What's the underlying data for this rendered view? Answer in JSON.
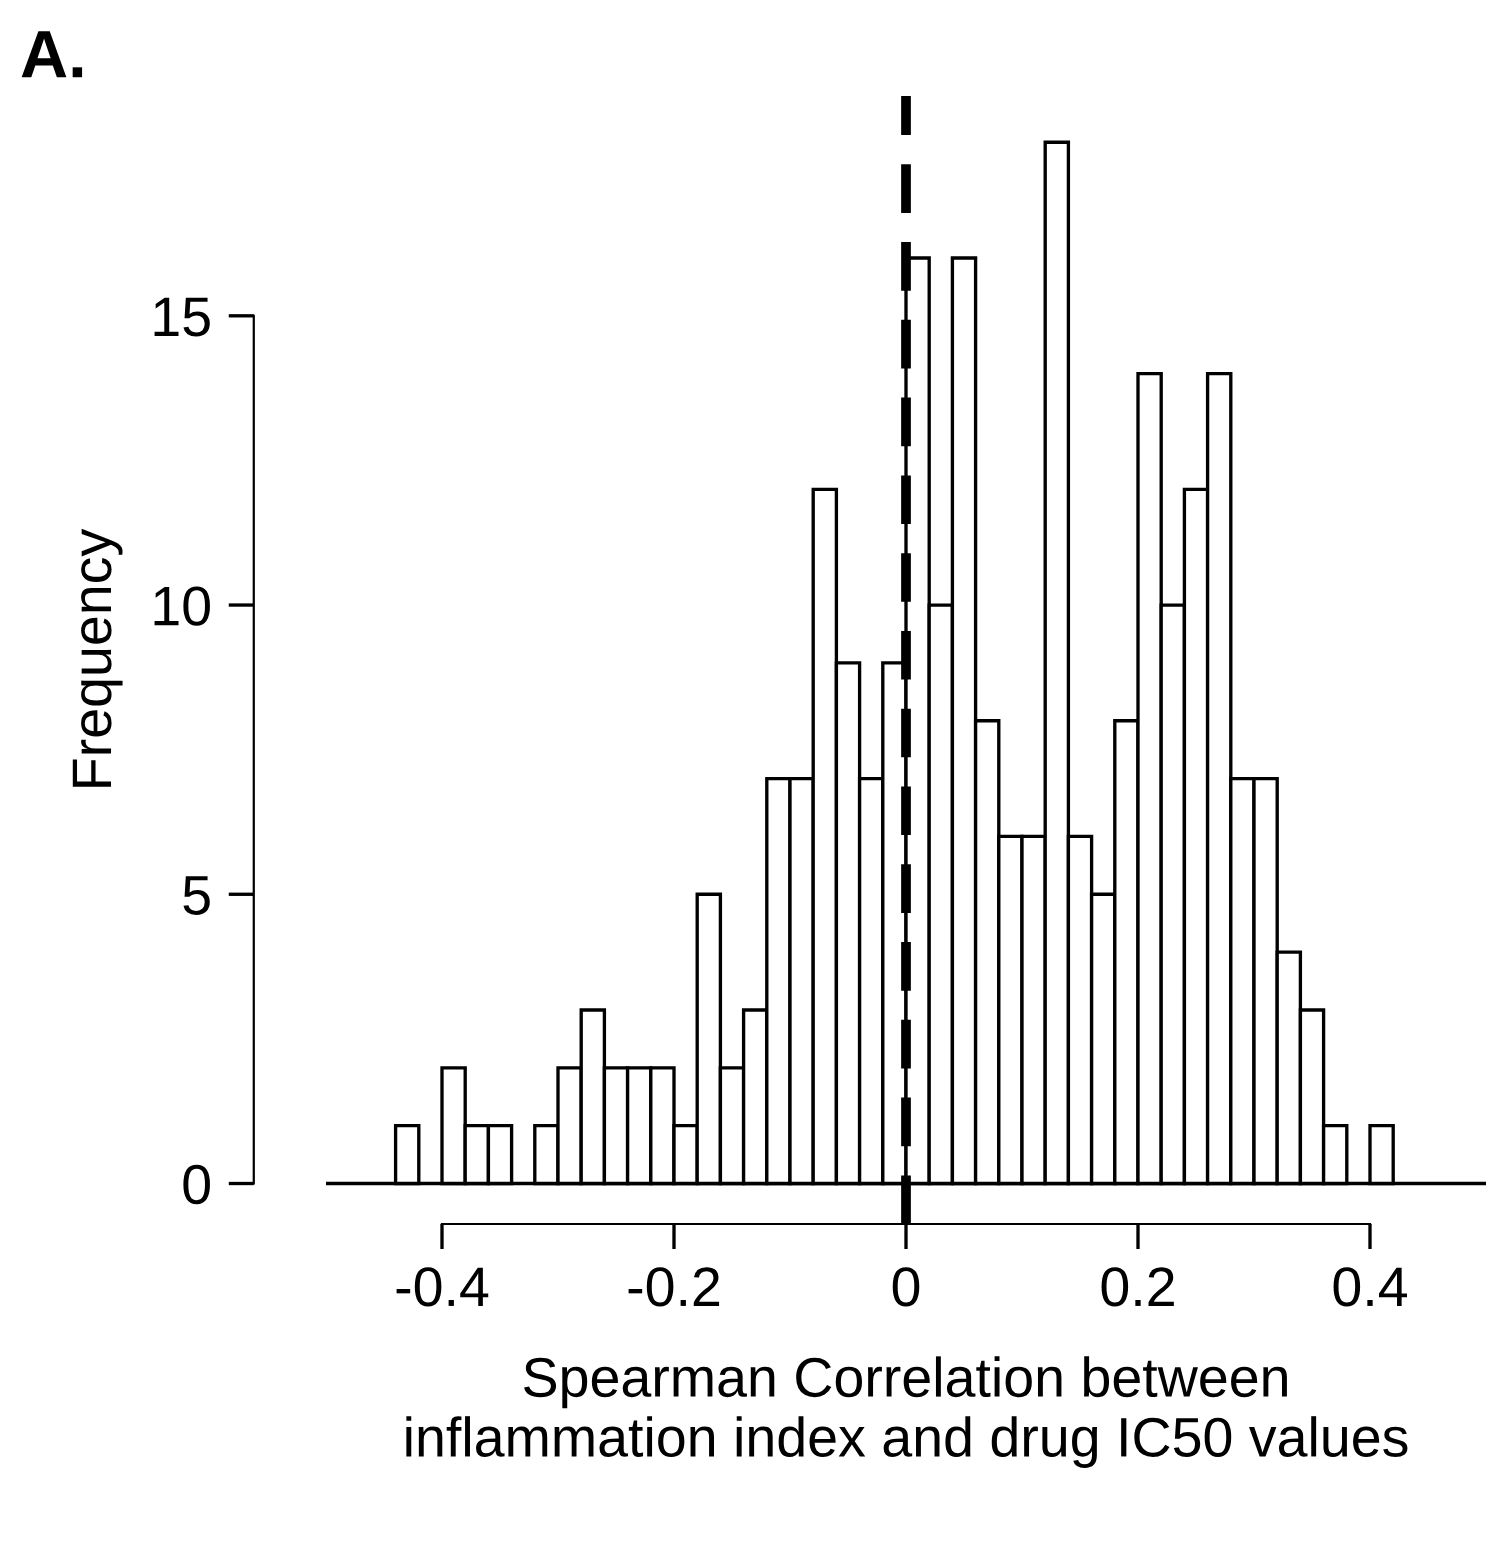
{
  "chart_data": {
    "type": "histogram",
    "title": "A.",
    "xlabel": "Spearman Correlation between\ninflammation index and drug IC50 values",
    "ylabel": "Frequency",
    "bins": [
      -0.44,
      -0.42,
      -0.4,
      -0.38,
      -0.36,
      -0.34,
      -0.32,
      -0.3,
      -0.28,
      -0.26,
      -0.24,
      -0.22,
      -0.2,
      -0.18,
      -0.16,
      -0.14,
      -0.12,
      -0.1,
      -0.08,
      -0.06,
      -0.04,
      -0.02,
      0,
      0.02,
      0.04,
      0.06,
      0.08,
      0.1,
      0.12,
      0.14,
      0.16,
      0.18,
      0.2,
      0.22,
      0.24,
      0.26,
      0.28,
      0.3,
      0.32,
      0.34,
      0.36,
      0.38,
      0.4,
      0.42
    ],
    "values": [
      1,
      0,
      2,
      1,
      1,
      0,
      1,
      2,
      3,
      2,
      2,
      2,
      1,
      5,
      2,
      3,
      7,
      7,
      12,
      9,
      7,
      9,
      16,
      10,
      16,
      8,
      6,
      6,
      18,
      6,
      5,
      8,
      14,
      10,
      12,
      14,
      7,
      7,
      4,
      3,
      1,
      0,
      1
    ],
    "color": "#ffffff",
    "xlim": [
      -0.5,
      0.5
    ],
    "xticks": [
      -0.4,
      -0.2,
      0,
      0.2,
      0.4
    ],
    "ylim": [
      -0.7,
      18.8
    ],
    "yticks": [
      0,
      5,
      10,
      15
    ],
    "grid": false,
    "ref_lines": [
      {
        "axis": "x",
        "value": 0,
        "color": "#000000",
        "line_style": "dashed"
      },
      {
        "axis": "y",
        "value": 0,
        "color": "#000000",
        "line_style": "solid"
      }
    ]
  }
}
